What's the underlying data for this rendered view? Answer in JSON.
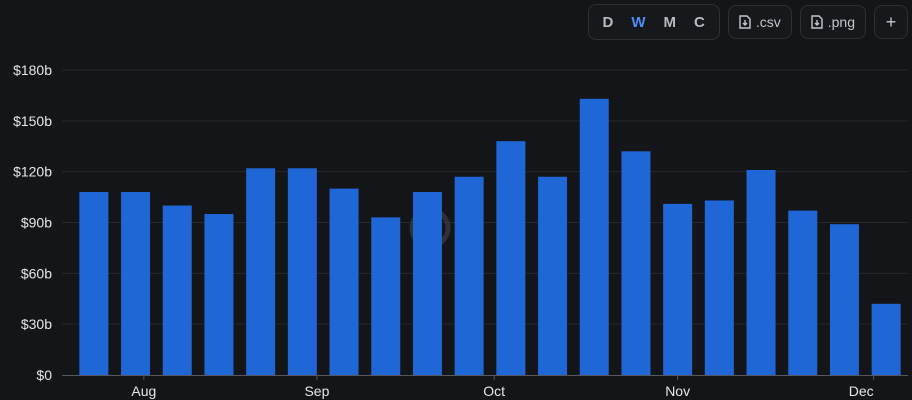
{
  "toolbar": {
    "periods": [
      "D",
      "W",
      "M",
      "C"
    ],
    "active_period": "W",
    "csv_label": ".csv",
    "png_label": ".png",
    "add_label": "+"
  },
  "colors": {
    "background": "#141518",
    "bar": "#1f66d6",
    "grid": "#26282d",
    "axis": "#55585f",
    "text": "#e6e7ea",
    "accent": "#4c8ef7"
  },
  "chart_data": {
    "type": "bar",
    "y_unit_prefix": "$",
    "y_unit_suffix": "b",
    "ylim": [
      0,
      180
    ],
    "yticks": [
      0,
      30,
      60,
      90,
      120,
      150,
      180
    ],
    "ytick_labels": [
      "$0",
      "$30b",
      "$60b",
      "$90b",
      "$120b",
      "$150b",
      "$180b"
    ],
    "xtick_labels": [
      "Aug",
      "Sep",
      "Oct",
      "Nov",
      "Dec"
    ],
    "xtick_positions": [
      1.7,
      5.85,
      10.1,
      14.5,
      19.2
    ],
    "values": [
      108,
      108,
      100,
      95,
      122,
      122,
      110,
      93,
      108,
      117,
      138,
      117,
      163,
      132,
      101,
      103,
      121,
      97,
      89,
      42
    ],
    "grid": true,
    "legend": "none"
  }
}
